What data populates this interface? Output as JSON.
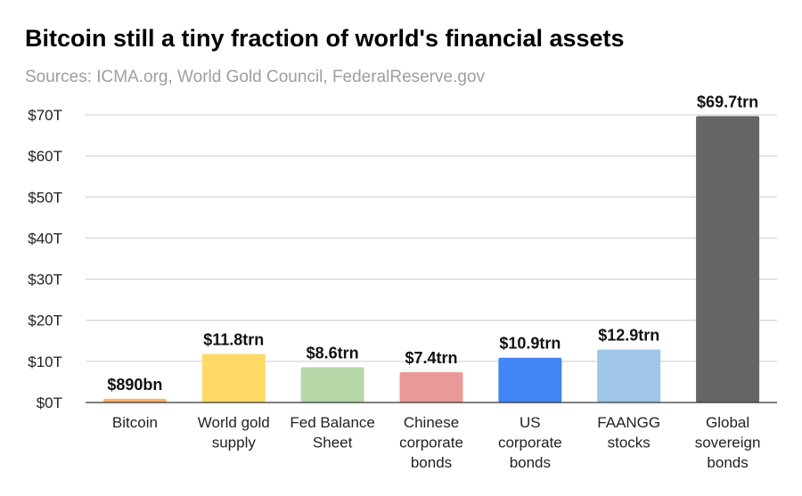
{
  "title": "Bitcoin still a tiny fraction of world's financial assets",
  "subtitle": "Sources: ICMA.org, World Gold Council, FederalReserve.gov",
  "chart_data": {
    "type": "bar",
    "title": "Bitcoin still a tiny fraction of world's financial assets",
    "subtitle": "Sources: ICMA.org, World Gold Council, FederalReserve.gov",
    "categories": [
      [
        "Bitcoin"
      ],
      [
        "World gold",
        "supply"
      ],
      [
        "Fed Balance",
        "Sheet"
      ],
      [
        "Chinese",
        "corporate",
        "bonds"
      ],
      [
        "US",
        "corporate",
        "bonds"
      ],
      [
        "FAANGG",
        "stocks"
      ],
      [
        "Global",
        "sovereign",
        "bonds"
      ]
    ],
    "values": [
      0.89,
      11.8,
      8.6,
      7.4,
      10.9,
      12.9,
      69.7
    ],
    "data_labels": [
      "$890bn",
      "$11.8trn",
      "$8.6trn",
      "$7.4trn",
      "$10.9trn",
      "$12.9trn",
      "$69.7trn"
    ],
    "colors": [
      "#f6b26b",
      "#ffd966",
      "#b6d7a8",
      "#ea9999",
      "#4285f4",
      "#9fc5e8",
      "#666666"
    ],
    "yticks": [
      0,
      10,
      20,
      30,
      40,
      50,
      60,
      70
    ],
    "ytick_labels": [
      "$0T",
      "$10T",
      "$20T",
      "$30T",
      "$40T",
      "$50T",
      "$60T",
      "$70T"
    ],
    "ylim": [
      0,
      70
    ],
    "xlabel": "",
    "ylabel": "",
    "grid": true,
    "legend": "none"
  }
}
